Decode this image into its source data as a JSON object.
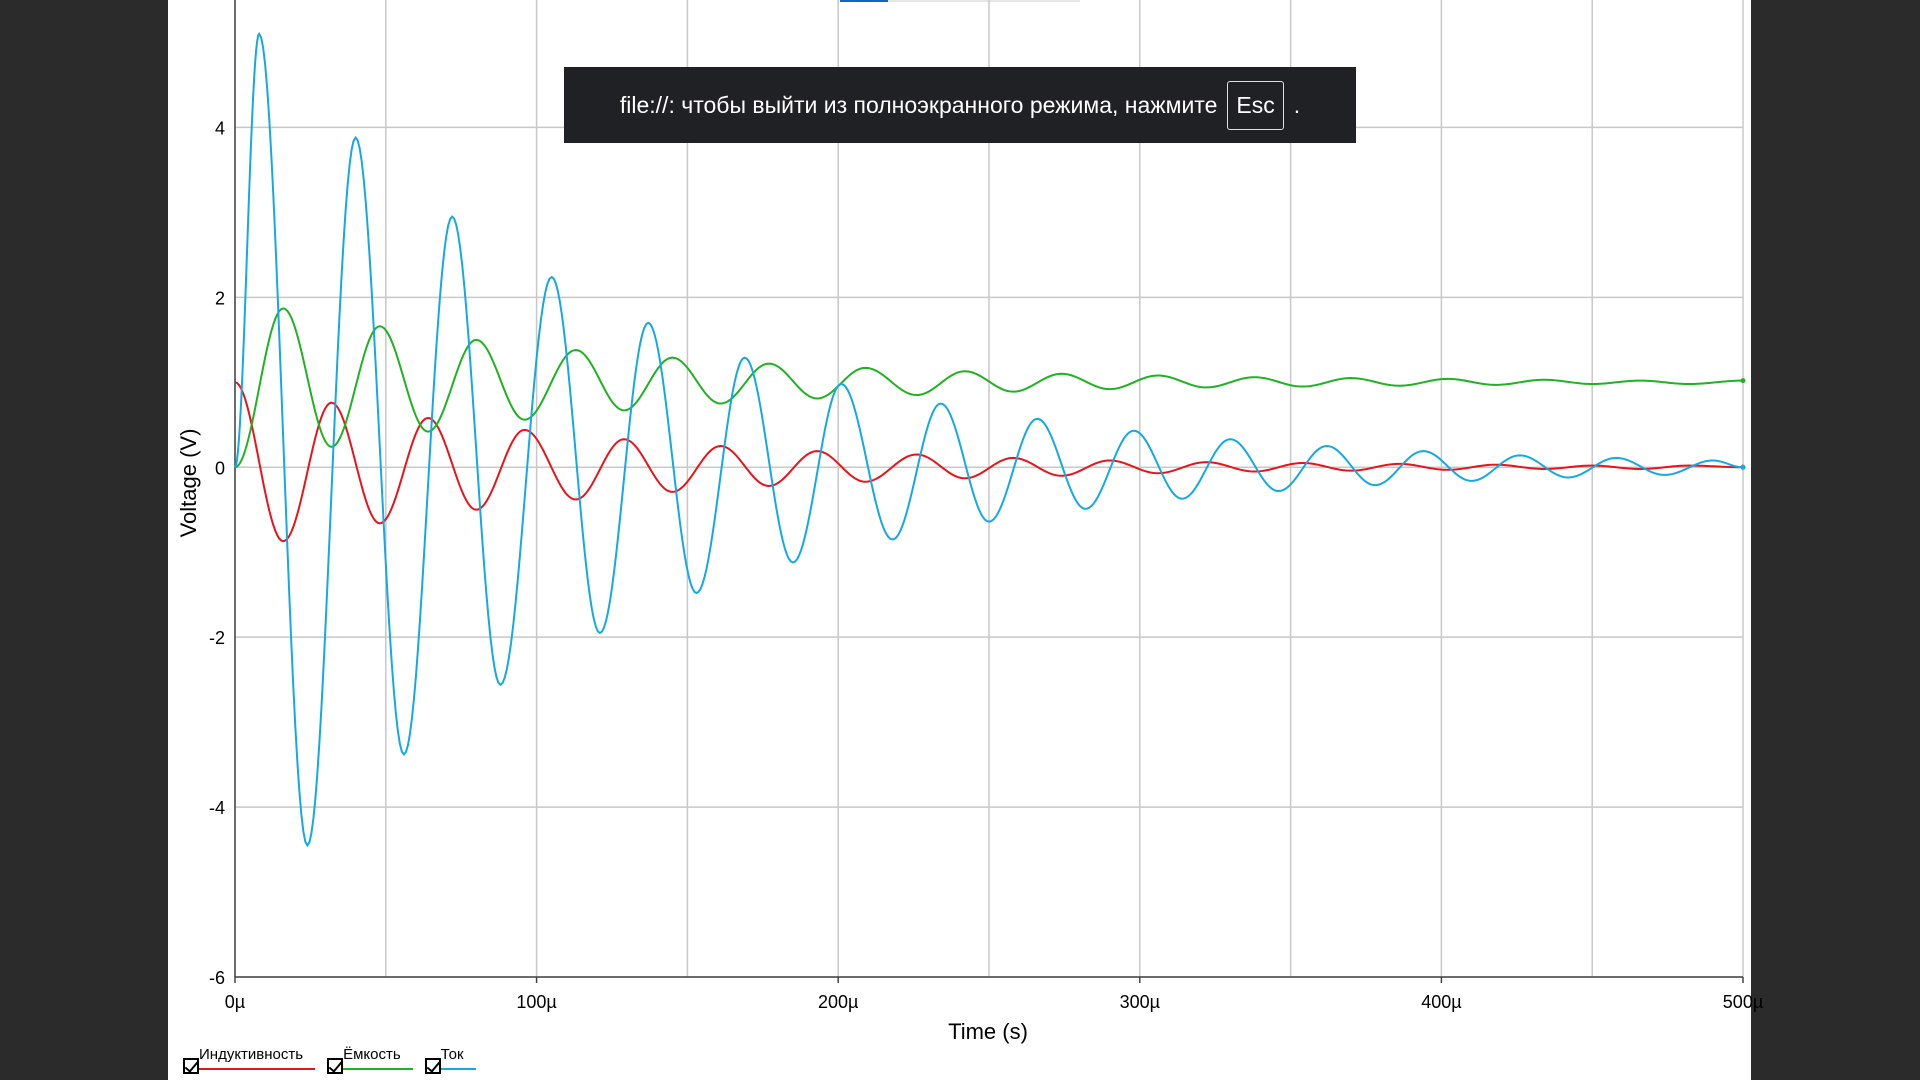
{
  "chart_data": {
    "type": "line",
    "xlabel": "Time (s)",
    "ylabel": "Voltage (V)",
    "xlim": [
      0,
      500
    ],
    "ylim": [
      -6,
      5.5
    ],
    "x_ticks": [
      0,
      100,
      200,
      300,
      400,
      500
    ],
    "x_tick_labels": [
      "0µ",
      "100µ",
      "200µ",
      "300µ",
      "400µ",
      "500µ"
    ],
    "y_ticks": [
      -6,
      -4,
      -2,
      0,
      2,
      4
    ],
    "y_tick_labels": [
      "-6",
      "-4",
      "-2",
      "0",
      "2",
      "4"
    ],
    "grid": true,
    "legend_position": "bottom-left",
    "series": [
      {
        "name": "Индуктивность",
        "color": "#e8141b",
        "x": [
          0,
          16,
          32,
          48,
          64,
          80,
          96,
          113,
          129,
          145,
          161,
          177,
          193,
          209,
          226,
          242,
          258,
          274,
          290,
          306,
          322,
          338,
          354,
          370,
          386,
          402,
          418,
          434,
          450,
          466,
          482,
          500
        ],
        "values": [
          1.0,
          -0.87,
          0.76,
          -0.66,
          0.58,
          -0.5,
          0.44,
          -0.38,
          0.33,
          -0.29,
          0.25,
          -0.22,
          0.19,
          -0.17,
          0.15,
          -0.13,
          0.11,
          -0.1,
          0.08,
          -0.07,
          0.06,
          -0.05,
          0.05,
          -0.04,
          0.04,
          -0.03,
          0.03,
          -0.02,
          0.02,
          -0.02,
          0.02,
          0.0
        ]
      },
      {
        "name": "Ёмкость",
        "color": "#1fb222",
        "x": [
          0,
          16,
          32,
          48,
          64,
          80,
          96,
          113,
          129,
          145,
          161,
          177,
          193,
          209,
          226,
          242,
          258,
          274,
          290,
          306,
          322,
          338,
          354,
          370,
          386,
          402,
          418,
          434,
          450,
          466,
          482,
          500
        ],
        "values": [
          0.0,
          1.87,
          0.24,
          1.66,
          0.42,
          1.5,
          0.56,
          1.38,
          0.67,
          1.29,
          0.75,
          1.22,
          0.81,
          1.17,
          0.85,
          1.13,
          0.89,
          1.1,
          0.92,
          1.08,
          0.94,
          1.06,
          0.95,
          1.05,
          0.96,
          1.04,
          0.97,
          1.03,
          0.98,
          1.02,
          0.98,
          1.02
        ]
      },
      {
        "name": "Ток",
        "color": "#15a9e3",
        "x": [
          0,
          8,
          24,
          40,
          56,
          72,
          88,
          105,
          121,
          137,
          153,
          169,
          185,
          201,
          218,
          234,
          250,
          266,
          282,
          298,
          314,
          330,
          346,
          362,
          378,
          394,
          410,
          426,
          442,
          458,
          474,
          490,
          500
        ],
        "values": [
          0.0,
          5.1,
          -4.45,
          3.88,
          -3.38,
          2.95,
          -2.56,
          2.24,
          -1.95,
          1.7,
          -1.48,
          1.29,
          -1.12,
          0.98,
          -0.85,
          0.75,
          -0.64,
          0.57,
          -0.49,
          0.43,
          -0.37,
          0.33,
          -0.28,
          0.25,
          -0.21,
          0.19,
          -0.16,
          0.14,
          -0.12,
          0.11,
          -0.09,
          0.08,
          0.0
        ]
      }
    ]
  },
  "toast": {
    "message": "file://: чтобы выйти из полноэкранного режима, нажмите",
    "key": "Esc",
    "suffix": "."
  }
}
